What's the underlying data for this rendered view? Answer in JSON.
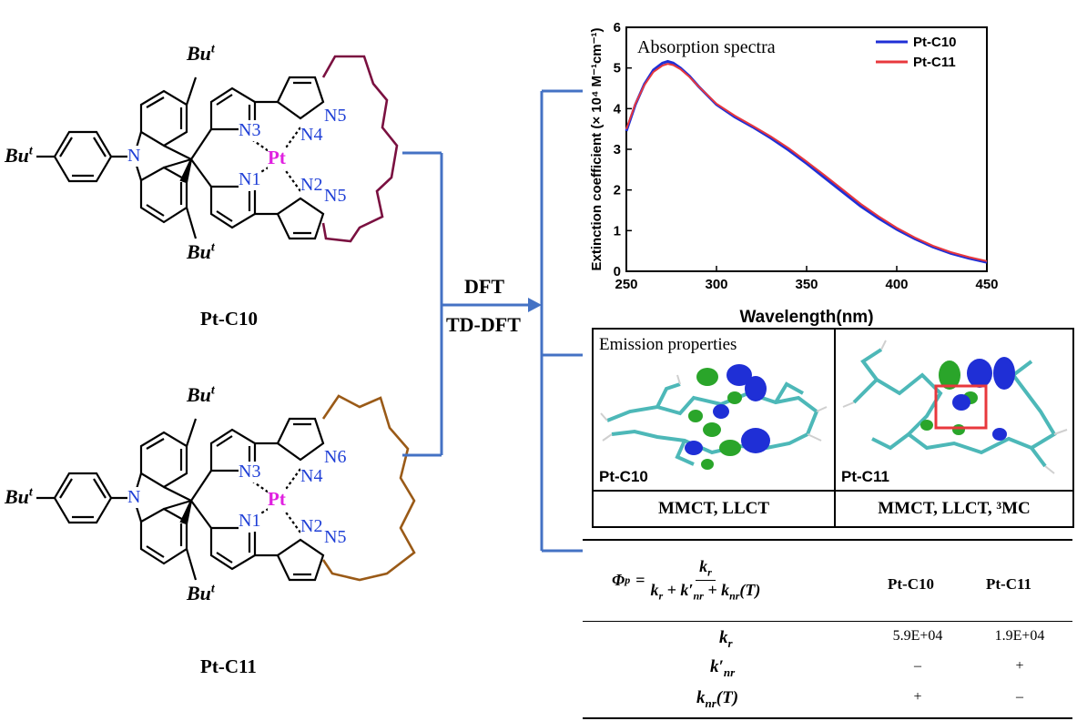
{
  "molecules": [
    {
      "name": "Pt-C10",
      "tether_color": "#7a1040",
      "labels": {
        "N3": "N3",
        "N4": "N4",
        "N5": "N5",
        "N1": "N1",
        "N2": "N2",
        "N5b": "N5",
        "metal": "Pt",
        "amine": "N",
        "tbu": "Bu",
        "tbu_sup": "t"
      }
    },
    {
      "name": "Pt-C11",
      "tether_color": "#9a5a17",
      "labels": {
        "N3": "N3",
        "N4": "N4",
        "N5": "N6",
        "N1": "N1",
        "N2": "N2",
        "N5b": "N5",
        "metal": "Pt",
        "amine": "N",
        "tbu": "Bu",
        "tbu_sup": "t"
      }
    }
  ],
  "method_labels": {
    "top": "DFT",
    "bottom": "TD-DFT"
  },
  "connector_color": "#4472c4",
  "chart_data": {
    "type": "line",
    "title": "Absorption spectra",
    "xlabel": "Wavelength(nm)",
    "ylabel": "Extinction coefficient (× 10⁴ M⁻¹cm⁻¹)",
    "xlim": [
      250,
      450
    ],
    "ylim": [
      0,
      6
    ],
    "xticks": [
      250,
      300,
      350,
      400,
      450
    ],
    "yticks": [
      0,
      1,
      2,
      3,
      4,
      5,
      6
    ],
    "legend_position": "top-right",
    "grid": false,
    "series": [
      {
        "name": "Pt-C10",
        "color": "#1f2fd6",
        "x": [
          250,
          255,
          260,
          265,
          270,
          273,
          276,
          280,
          285,
          290,
          300,
          310,
          320,
          330,
          340,
          350,
          360,
          370,
          380,
          390,
          400,
          410,
          420,
          430,
          440,
          450
        ],
        "y": [
          3.45,
          4.1,
          4.6,
          4.95,
          5.12,
          5.16,
          5.12,
          5.0,
          4.8,
          4.55,
          4.1,
          3.8,
          3.55,
          3.28,
          2.98,
          2.65,
          2.3,
          1.95,
          1.6,
          1.3,
          1.03,
          0.8,
          0.6,
          0.44,
          0.32,
          0.22
        ]
      },
      {
        "name": "Pt-C11",
        "color": "#e8383d",
        "x": [
          250,
          255,
          260,
          265,
          270,
          273,
          276,
          280,
          285,
          290,
          300,
          310,
          320,
          330,
          340,
          350,
          360,
          370,
          380,
          390,
          400,
          410,
          420,
          430,
          440,
          450
        ],
        "y": [
          3.5,
          4.12,
          4.58,
          4.9,
          5.06,
          5.1,
          5.07,
          4.97,
          4.78,
          4.55,
          4.12,
          3.83,
          3.58,
          3.32,
          3.03,
          2.7,
          2.36,
          2.01,
          1.66,
          1.35,
          1.07,
          0.83,
          0.63,
          0.47,
          0.35,
          0.25
        ]
      }
    ]
  },
  "emission": {
    "title": "Emission properties",
    "panels": [
      {
        "name": "Pt-C10",
        "character": "MMCT, LLCT"
      },
      {
        "name": "Pt-C11",
        "character": "MMCT, LLCT, ³MC"
      }
    ]
  },
  "table": {
    "formula": {
      "phi": "Φ",
      "phi_sub": "p",
      "num": "k",
      "num_sub": "r",
      "den": [
        "k",
        "r",
        " + k′",
        "nr",
        " + k",
        "nr",
        "(T)"
      ]
    },
    "columns": [
      "Pt-C10",
      "Pt-C11"
    ],
    "rows": [
      {
        "label": "k",
        "sub": "r",
        "values": [
          "5.9E+04",
          "1.9E+04"
        ]
      },
      {
        "label": "k′",
        "sub": "nr",
        "values": [
          "–",
          "+"
        ]
      },
      {
        "label": "k",
        "sub": "nr",
        "suffix": "(T)",
        "values": [
          "+",
          "–"
        ]
      }
    ]
  }
}
